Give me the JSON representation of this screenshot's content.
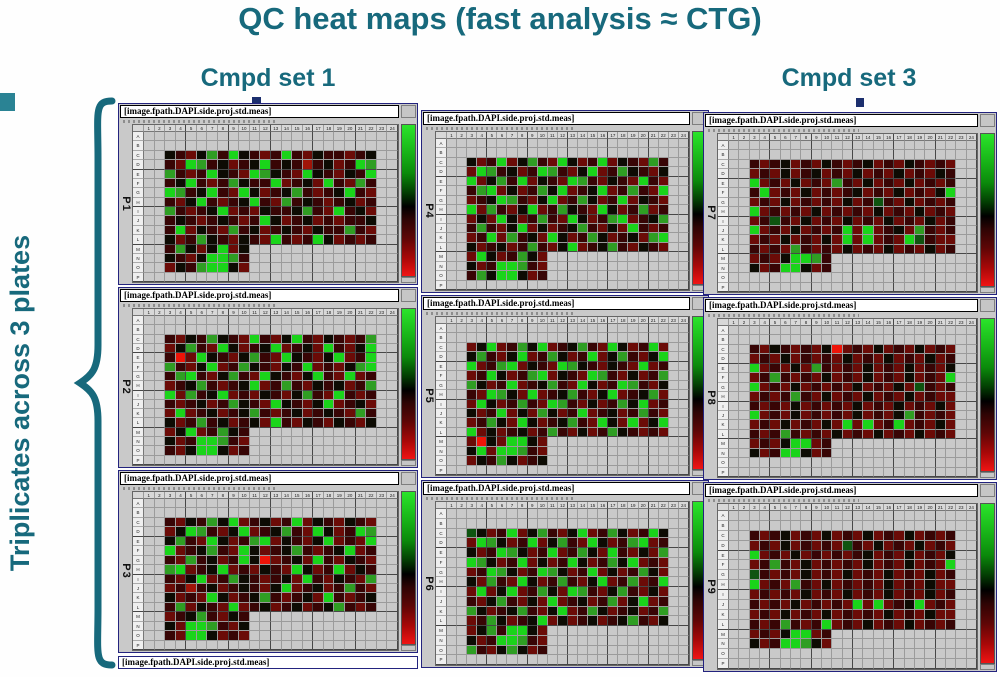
{
  "slide": {
    "title": "QC heat maps (fast analysis ≈ CTG)",
    "col_label_left": "Cmpd set 1",
    "col_label_right": "Cmpd set 3",
    "side_label": "Triplicates across 3 plates",
    "accent_color": "#17697c"
  },
  "chart_data": {
    "type": "heatmap",
    "panel_title": "[image.fpath.DAPI.side.proj.std.meas]",
    "rows": [
      "A",
      "B",
      "C",
      "D",
      "E",
      "F",
      "G",
      "H",
      "I",
      "J",
      "K",
      "L",
      "M",
      "N",
      "O",
      "P"
    ],
    "cols": [
      1,
      2,
      3,
      4,
      5,
      6,
      7,
      8,
      9,
      10,
      11,
      12,
      13,
      14,
      15,
      16,
      17,
      18,
      19,
      20,
      21,
      22,
      23,
      24
    ],
    "empty_color": "#c9c9c9",
    "colorbar_colors": [
      "#2ae42a",
      "#0b8a0b",
      "#000000",
      "#4a0505",
      "#a80808",
      "#f01414"
    ],
    "palette": {
      ".": "#c9c9c9",
      "K": "#0d0b03",
      "R": "#380505",
      "r": "#6b0b07",
      "q": "#a11408",
      "X": "#ee1408",
      "G": "#1ad41a",
      "g": "#2f9e23",
      "d": "#0f5410"
    },
    "panels": [
      {
        "label": "P1",
        "grid": [
          "........................",
          "........................",
          "..KRrKgRGKRrRGRrKRRrRK..",
          "..RrGgRKrRKGRKRqRKrRGg..",
          "..gRrRGKRrGgKRrGKRrKRG..",
          "..RKGRrRgKRRGrRKrGRrgR..",
          "..GgRKGRrGKrRKgRrRKGRr..",
          "..RrKGRrRKGRrgRKRrRKrR..",
          "..gRrRKGrRrKRRKgRrGRKr..",
          "..RKRrRKRrRGKrRKrRrRRK..",
          "..RGrKRrgRKrRKRrKRRgRr..",
          "..KrRgKRrKRrGRrRGKrRrR..",
          "..RgKrKGrK..............",
          "..KRrKGGgR..............",
          "..rKRgGGKr..............",
          "........................"
        ]
      },
      {
        "label": "P2",
        "grid": [
          "........................",
          "........................",
          "..RrKRgKRrGRrKGRrKRrRg..",
          "..rKgRrGKrRKGrRKrGRrKG..",
          "..RXrGKRrKgRrGKRrKGrRG..",
          "..gRrKGrRgKRrKRGrRrKgG..",
          "..RgGRrKgRrGKRrKGRrGrR..",
          "..rRKgRrRKGrRgRrKRKrRg..",
          "..GrgRKGrRrKRrKgRrGRrR..",
          "..RrRKrRgKRrGKRrKGrRKr..",
          "..rGrRKrRKgRrRKrRKRrgR..",
          "..KrRgRKrRKrGRrKRrKRrK..",
          "..rKGrRgKR..............",
          "..KrRGGgRr..............",
          "..RrKGGKrR..............",
          "........................"
        ]
      },
      {
        "label": "P3",
        "grid": [
          "........................",
          "........................",
          "..RrKRgKGrRKrRGrKRrKRr..",
          "..rKGgRrKGrRKgRrGKrRGg..",
          "..KgRrGKrRgGrKRrKGrRrG..",
          "..GrRKgRrGKrRKgRrRKGrR..",
          "..RrgRKrRGKXrRKrGRrKRr..",
          "..gGrRKGrRrKRrGKrRGrKR..",
          "..RrKGrRgKRrRKrGRrKRrg..",
          "..rRqRKrRKRrKGrRKrRgRr..",
          "..KrRrGKrRKgRrRKrGRrRK..",
          "..RgrKRrGrRKrRKrRKgRrR..",
          "..rRKgRrKR..............",
          "..KrGGgRrK..............",
          "..RrGGKrRr..............",
          "........................"
        ]
      },
      {
        "label": "P4",
        "grid": [
          "........................",
          "........................",
          "..KrRGrKgRrGKrRGrKRrgR..",
          "..rGgRKrRGgRrKGrRgKRrK..",
          "..GrKgRGrKRrGgRrKRrGRr..",
          "..RgGrKrRgKGrRKGrRgRrG..",
          "..rRKGgRrKGrRgKrRGrKRr..",
          "..GrgRrKGrRgKRrGKrRgrR..",
          "..rKrGKrRgRrGKrRgGrRKg..",
          "..RgRrKGrKrRKgRrKrGRrR..",
          "..rRGrgRKrGKrRgKrRKrgG..",
          "..KrRKrRgRrKGrRKgRrKRr..",
          "..rGKrRgKr..............",
          "..KrRGGgRr..............",
          "..RgKGGKrR..............",
          "........................"
        ]
      },
      {
        "label": "P5",
        "grid": [
          "........................",
          "........................",
          "..rKGrRgKGrRKgRrGKrRGr..",
          "..KgRrKGrRgKrRGrKgRrKG..",
          "..GrRgGrKRrGgKRrKRrGrR..",
          "..rRGKrRgGrKRrGgRrKrRg..",
          "..gKrRGrRKgRrGKrRGgRrK..",
          "..RrGgKrGrRKgRrKGrRKgr..",
          "..rGKrRgRrGgRrKrRgKGrR..",
          "..KrRGrKrgKrRGrRKrRgRr..",
          "..rRgKrGKrRKgRrGKrGrKG..",
          "..GrKrRKrRgRrKrRgKRrRr..",
          "..rXKrGGKr..............",
          "..KGrGGgRr..............",
          "..rKRgKrRK..............",
          "........................"
        ]
      },
      {
        "label": "P6",
        "grid": [
          "........................",
          "........................",
          "..dKrRGrKgRrKGrRgKrRGK..",
          "..rGgKrRGrKgRrGKrRgGrR..",
          "..KrRGgKrRGrRgKrGRrKrg..",
          "..GgKrRGrKrRGKrRgKGrRr..",
          "..rRGgKrRGgKrRGrKrRgKr..",
          "..KrgRrGKrRgRrKGrRgrRG..",
          "..rGrKGrRgKrGgRrKgRrKr..",
          "..RrKgRrKrGrRKrRgrKGrR..",
          "..gKrRKgRrKGrRgKrRKrRg..",
          "..rRgKrRKGrKrRKrRKgRrK..",
          "..rKgRGGKr..............",
          "..KrRGGgRr..............",
          "..gRrKgKrR..............",
          "........................"
        ]
      },
      {
        "label": "P7",
        "grid": [
          "........................",
          "........................",
          "..RrRKrRrKRrRKrRrKRrRr..",
          "..rRrKrRKrRrKrRrKrRrKR..",
          "..GrRrKrRrgRrKrRrKrRrR..",
          "..RGrRrKrRrRKrRrKrRrKG..",
          "..rRrKrRrRrKrRdRrKrRrR..",
          "..GrRrRrKrRrRrKrRrKrRr..",
          "..rRdRrKrRrKrRrKrRrKrR..",
          "..GrRrKrRrRGrGrRKrgRrR..",
          "..rRrKrRrKrGrGrRrGdRrr..",
          "..RrRrgRrRrKrRrKrRrKrR..",
          "..rRrKGGgR..............",
          "..KrRGGKrR..............",
          "........................",
          "........................"
        ]
      },
      {
        "label": "P8",
        "grid": [
          "........................",
          "........................",
          "..RrKRrRrKXrRrKrRrKrRr..",
          "..rRrKrRrRrKrRrKrRrKrR..",
          "..GrRrKrgRrRrKrRrKrRrK..",
          "..rRgRrRrKrRrKrRrKrRrG..",
          "..GrRrKrRrRrKrRrKrdRrR..",
          "..rRrRgRrKrRrKrRrKrRrr..",
          "..RrRrKrRrRrKrRrKrRrKr..",
          "..GrRrKrRrRrKrRrKgRrRr..",
          "..rRrKrRrKrGrGrRGrRrKr..",
          "..RrRgRrRrKrRrKrRrKrRr..",
          "..rRrKGGrR..............",
          "..KrRGGKrR..............",
          "........................",
          "........................"
        ]
      },
      {
        "label": "P9",
        "grid": [
          "........................",
          "........................",
          "..RrRKrRrKrRrKrRrKrRrR..",
          "..rRrKrRrRrdRrKrRrKrRr..",
          "..GrRrKrRrRrRKrRrKrRrK..",
          "..rRgRrKrRrRrKrRrKrRrG..",
          "..dRrRrKrRrKrRrKrRrKrR..",
          "..GrRrgRrKrRrRrKrRrKrr..",
          "..rRrRrKrRrKrRrKrRrKrR..",
          "..RrRrKrRrRrGrGrRKGrRr..",
          "..rRrKrRrKrRrRrKrRrKrr..",
          "..RrRgRrRGrRrKrRrKrRrR..",
          "..rRrKGGrR..............",
          "..KrRGGgKr..............",
          "........................",
          "........................"
        ]
      }
    ]
  }
}
